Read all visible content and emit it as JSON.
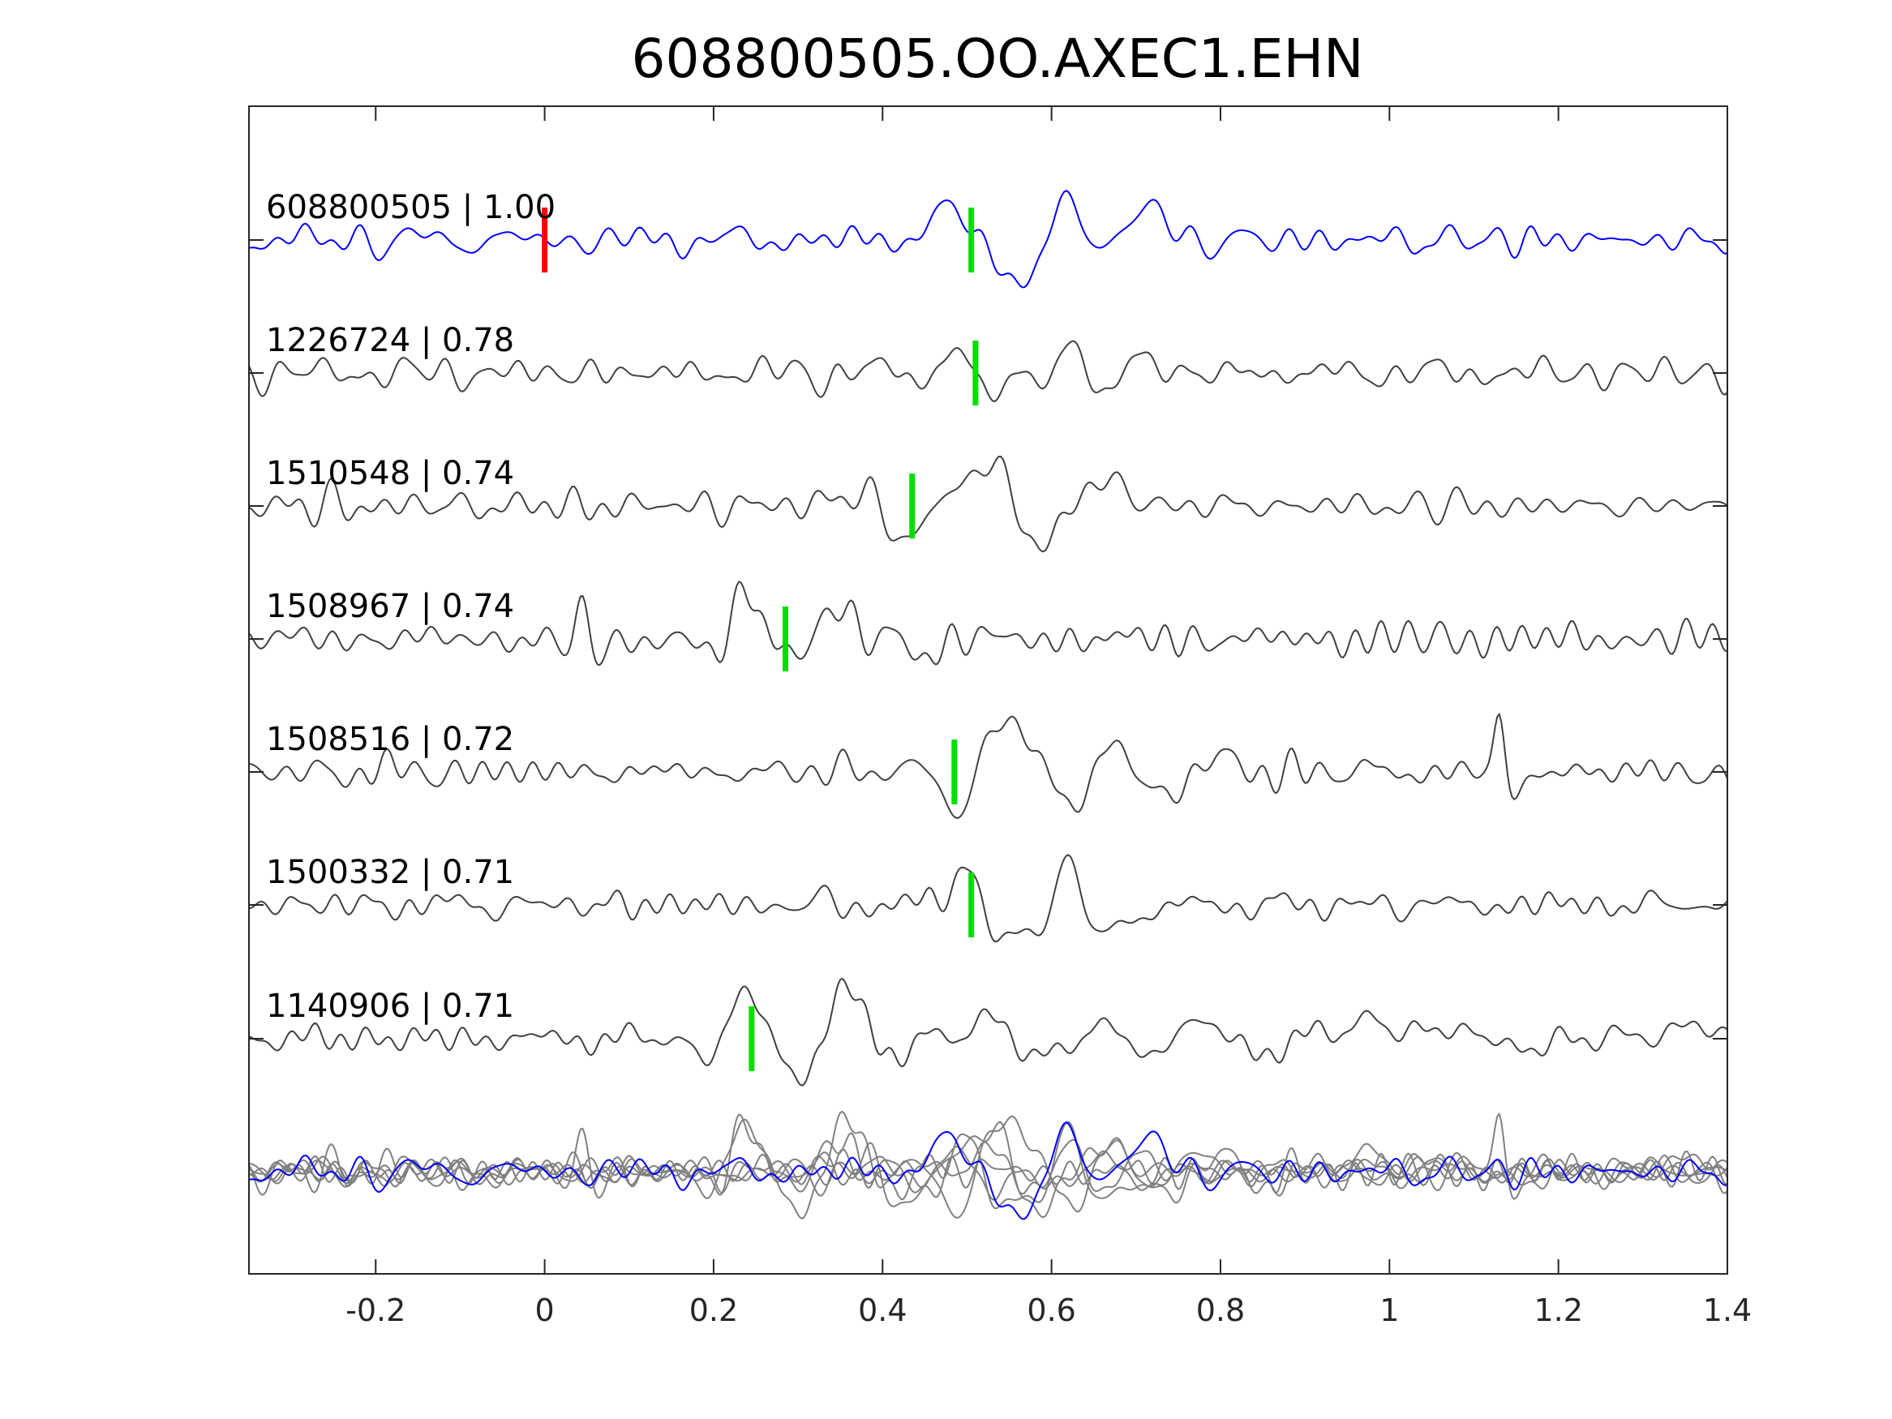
{
  "chart_data": {
    "type": "line",
    "title": "608800505.OO.AXEC1.EHN",
    "xlabel": "",
    "ylabel": "",
    "xlim": [
      -0.35,
      1.4
    ],
    "x_ticks": [
      -0.2,
      0,
      0.2,
      0.4,
      0.6,
      0.8,
      1,
      1.2,
      1.4
    ],
    "x_tick_labels": [
      "-0.2",
      "0",
      "0.2",
      "0.4",
      "0.6",
      "0.8",
      "1",
      "1.2",
      "1.4"
    ],
    "grid": false,
    "colors": {
      "reference_trace": "#0000ff",
      "template_trace": "#404040",
      "overlay_trace": "#808080",
      "reference_pick": "#ff0000",
      "template_pick": "#00dd00",
      "axes": "#262626"
    },
    "traces": [
      {
        "id": "608800505",
        "score": "1.00",
        "label": "608800505 | 1.00",
        "role": "reference",
        "pick_time": 0.0,
        "pick_color": "#ff0000",
        "second_pick_time": 0.505,
        "features": [
          [
            0.49,
            0.6,
            0.03
          ],
          [
            0.515,
            -0.1,
            0.02
          ],
          [
            0.555,
            -0.75,
            0.025
          ],
          [
            0.59,
            -0.5,
            0.02
          ],
          [
            0.615,
            1.25,
            0.018
          ],
          [
            0.65,
            -0.35,
            0.02
          ],
          [
            0.685,
            0.4,
            0.015
          ],
          [
            0.72,
            0.6,
            0.015
          ]
        ]
      },
      {
        "id": "1226724",
        "score": "0.78",
        "label": "1226724 | 0.78",
        "role": "template",
        "pick_time": 0.51,
        "pick_color": "#00dd00",
        "features": [
          [
            0.495,
            0.7,
            0.018
          ],
          [
            0.52,
            -0.8,
            0.02
          ],
          [
            0.57,
            0.45,
            0.02
          ],
          [
            0.595,
            -0.55,
            0.02
          ],
          [
            0.625,
            1.0,
            0.015
          ],
          [
            0.655,
            -0.7,
            0.02
          ],
          [
            0.69,
            0.45,
            0.02
          ]
        ]
      },
      {
        "id": "1510548",
        "score": "0.74",
        "label": "1510548 | 0.74",
        "role": "template",
        "pick_time": 0.435,
        "pick_color": "#00dd00",
        "features": [
          [
            0.36,
            0.3,
            0.02
          ],
          [
            0.43,
            -0.7,
            0.02
          ],
          [
            0.49,
            0.35,
            0.025
          ],
          [
            0.535,
            0.7,
            0.025
          ],
          [
            0.585,
            -1.0,
            0.02
          ],
          [
            0.66,
            0.45,
            0.03
          ]
        ]
      },
      {
        "id": "1508967",
        "score": "0.74",
        "label": "1508967 | 0.74",
        "role": "template",
        "pick_time": 0.285,
        "pick_color": "#00dd00",
        "features": [
          [
            0.03,
            -0.5,
            0.008
          ],
          [
            0.045,
            1.15,
            0.008
          ],
          [
            0.06,
            -0.6,
            0.01
          ],
          [
            0.2,
            -0.4,
            0.012
          ],
          [
            0.235,
            0.9,
            0.012
          ],
          [
            0.255,
            0.3,
            0.01
          ],
          [
            0.305,
            -0.4,
            0.012
          ],
          [
            0.33,
            0.5,
            0.012
          ],
          [
            0.36,
            0.75,
            0.01
          ],
          [
            0.38,
            -0.4,
            0.01
          ],
          [
            0.41,
            0.3,
            0.01
          ],
          [
            0.45,
            -0.45,
            0.012
          ]
        ]
      },
      {
        "id": "1508516",
        "score": "0.72",
        "label": "1508516 | 0.72",
        "role": "template",
        "pick_time": 0.485,
        "pick_color": "#00dd00",
        "features": [
          [
            0.43,
            0.15,
            0.025
          ],
          [
            0.49,
            -1.0,
            0.02
          ],
          [
            0.54,
            1.15,
            0.025
          ],
          [
            0.59,
            0.2,
            0.02
          ],
          [
            0.625,
            -0.8,
            0.02
          ],
          [
            0.67,
            0.6,
            0.018
          ],
          [
            0.74,
            -0.4,
            0.025
          ],
          [
            0.8,
            0.3,
            0.02
          ],
          [
            1.13,
            1.1,
            0.006
          ],
          [
            1.145,
            -0.55,
            0.008
          ]
        ]
      },
      {
        "id": "1500332",
        "score": "0.71",
        "label": "1500332 | 0.71",
        "role": "template",
        "pick_time": 0.505,
        "pick_color": "#00dd00",
        "features": [
          [
            0.5,
            0.95,
            0.018
          ],
          [
            0.53,
            -0.75,
            0.02
          ],
          [
            0.585,
            -0.5,
            0.025
          ],
          [
            0.62,
            1.2,
            0.015
          ],
          [
            0.65,
            -0.6,
            0.02
          ],
          [
            0.7,
            -0.25,
            0.02
          ]
        ]
      },
      {
        "id": "1140906",
        "score": "0.71",
        "label": "1140906 | 0.71",
        "role": "template",
        "pick_time": 0.245,
        "pick_color": "#00dd00",
        "features": [
          [
            0.2,
            -0.35,
            0.02
          ],
          [
            0.245,
            1.0,
            0.022
          ],
          [
            0.295,
            -0.95,
            0.02
          ],
          [
            0.36,
            1.2,
            0.018
          ],
          [
            0.4,
            -0.45,
            0.02
          ],
          [
            0.46,
            0.25,
            0.02
          ],
          [
            0.48,
            -0.3,
            0.02
          ],
          [
            0.53,
            0.5,
            0.025
          ],
          [
            0.6,
            -0.55,
            0.03
          ],
          [
            0.66,
            0.55,
            0.03
          ],
          [
            0.71,
            -0.5,
            0.03
          ],
          [
            0.78,
            0.45,
            0.03
          ],
          [
            0.85,
            -0.4,
            0.03
          ],
          [
            0.94,
            0.3,
            0.035
          ],
          [
            1.05,
            0.25,
            0.04
          ],
          [
            1.15,
            -0.15,
            0.04
          ],
          [
            1.35,
            0.2,
            0.04
          ]
        ]
      }
    ],
    "overlay": {
      "description_in_pixels_only": true,
      "includes": "all traces superimposed, reference on top"
    }
  }
}
